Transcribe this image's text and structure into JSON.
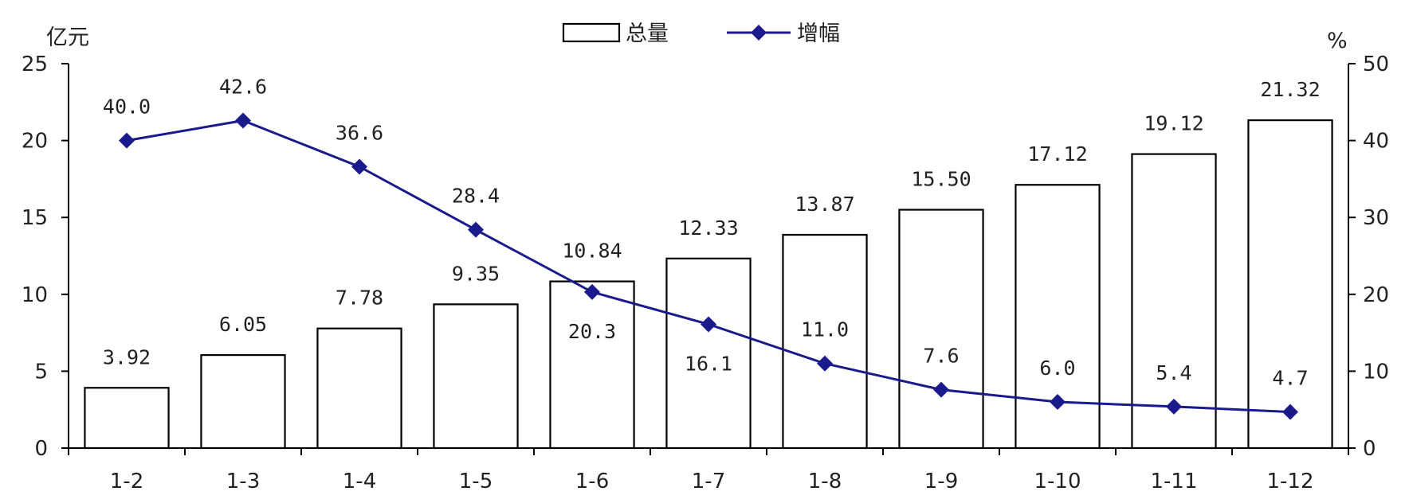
{
  "chart_data": {
    "type": "bar+line",
    "categories": [
      "1-2",
      "1-3",
      "1-4",
      "1-5",
      "1-6",
      "1-7",
      "1-8",
      "1-9",
      "1-10",
      "1-11",
      "1-12"
    ],
    "series": [
      {
        "name": "总量",
        "type": "bar",
        "axis": "left",
        "values": [
          3.92,
          6.05,
          7.78,
          9.35,
          10.84,
          12.33,
          13.87,
          15.5,
          17.12,
          19.12,
          21.32
        ],
        "labels": [
          "3.92",
          "6.05",
          "7.78",
          "9.35",
          "10.84",
          "12.33",
          "13.87",
          "15.50",
          "17.12",
          "19.12",
          "21.32"
        ]
      },
      {
        "name": "增幅",
        "type": "line",
        "axis": "right",
        "marker": "diamond",
        "color": "#1a1a8c",
        "values": [
          40.0,
          42.6,
          36.6,
          28.4,
          20.3,
          16.1,
          11.0,
          7.6,
          6.0,
          5.4,
          4.7
        ],
        "labels": [
          "40.0",
          "42.6",
          "36.6",
          "28.4",
          "20.3",
          "16.1",
          "11.0",
          "7.6",
          "6.0",
          "5.4",
          "4.7"
        ]
      }
    ],
    "y_left": {
      "unit": "亿元",
      "ylim": [
        0,
        25
      ],
      "ticks": [
        "0",
        "5",
        "10",
        "15",
        "20",
        "25"
      ]
    },
    "y_right": {
      "unit": "%",
      "ylim": [
        0,
        50
      ],
      "ticks": [
        "0",
        "10",
        "20",
        "30",
        "40",
        "50"
      ]
    },
    "grid": false,
    "legend": "top-center"
  }
}
